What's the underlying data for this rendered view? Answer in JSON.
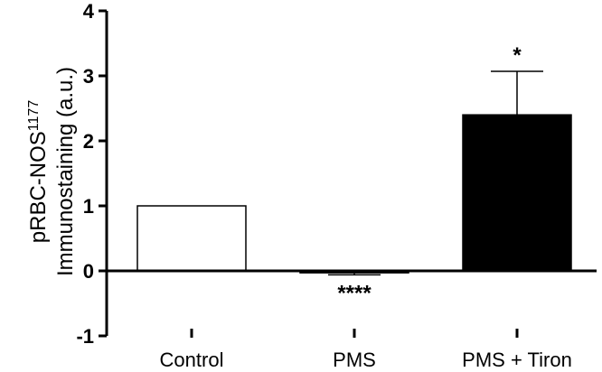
{
  "chart_data": {
    "type": "bar",
    "categories": [
      "Control",
      "PMS",
      "PMS + Tiron"
    ],
    "values": [
      1.0,
      -0.03,
      2.4
    ],
    "errors_upper": [
      0,
      0.0,
      0.67
    ],
    "errors_lower": [
      0,
      0.03,
      0
    ],
    "bar_fills": [
      "#ffffff",
      "#ffffff",
      "#000000"
    ],
    "significance": [
      "",
      "****",
      "*"
    ],
    "ylim": [
      -1,
      4
    ],
    "yticks": [
      "-1",
      "0",
      "1",
      "2",
      "3",
      "4"
    ],
    "ylabel_line1": "pRBC-NOS",
    "ylabel_superscript": "1177",
    "ylabel_line2": "Immunostaining (a.u.)",
    "title": "",
    "xlabel": ""
  }
}
